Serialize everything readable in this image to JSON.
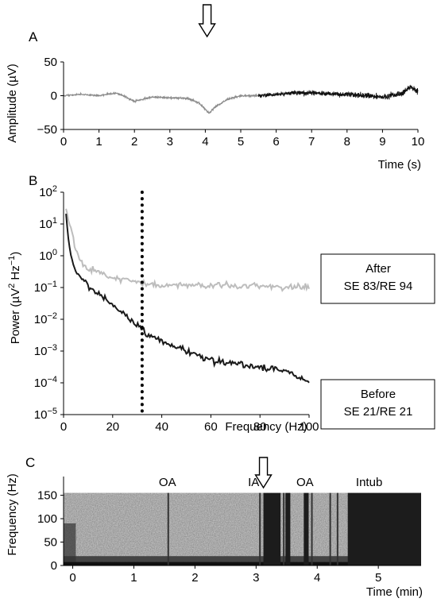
{
  "chart_data": [
    {
      "panel": "A",
      "type": "line",
      "xlabel": "Time (s)",
      "ylabel": "Amplitude (µV)",
      "xlim": [
        0,
        10
      ],
      "ylim": [
        -50,
        50
      ],
      "xticks": [
        "0",
        "1",
        "2",
        "3",
        "4",
        "5",
        "6",
        "7",
        "8",
        "9",
        "10"
      ],
      "yticks": [
        "50",
        "0",
        "−50"
      ],
      "grid": false,
      "series": [
        {
          "color": "#8c8c8c",
          "x": [
            0,
            0.5,
            1,
            1.5,
            2,
            2.5,
            3,
            3.5,
            3.8,
            4,
            4.1,
            4.3,
            4.6,
            5,
            5.5
          ],
          "y": [
            0,
            2,
            0,
            4,
            -8,
            -2,
            -3,
            -4,
            -10,
            -20,
            -26,
            -16,
            -6,
            0,
            0
          ]
        },
        {
          "color": "#111111",
          "x": [
            5.5,
            6,
            6.5,
            7,
            7.5,
            8,
            8.5,
            9,
            9.5,
            9.8,
            10
          ],
          "y": [
            0,
            2,
            4,
            4,
            3,
            2,
            0,
            -2,
            2,
            14,
            6
          ]
        }
      ],
      "annotations": [
        {
          "type": "arrow-down",
          "x": 4.05
        }
      ]
    },
    {
      "panel": "B",
      "type": "line",
      "xlabel": "Frequency (Hz)",
      "ylabel": "Power (µV² Hz⁻¹)",
      "xlim": [
        0,
        100
      ],
      "ylim": [
        1e-05,
        100
      ],
      "yscale": "log",
      "xticks": [
        "0",
        "20",
        "40",
        "60",
        "80",
        "100"
      ],
      "ytick_exponents": [
        "2",
        "1",
        "0",
        "−1",
        "−2",
        "−3",
        "−4",
        "−5"
      ],
      "grid": false,
      "vline": {
        "x": 32,
        "style": "dotted"
      },
      "series": [
        {
          "label": "After",
          "legend_text": [
            "After",
            "SE 83/RE 94"
          ],
          "color": "#bdbdbd",
          "x": [
            1,
            3,
            5,
            7,
            10,
            15,
            20,
            30,
            40,
            60,
            80,
            100
          ],
          "y": [
            30,
            8,
            1.5,
            0.6,
            0.4,
            0.3,
            0.2,
            0.15,
            0.12,
            0.12,
            0.11,
            0.1
          ]
        },
        {
          "label": "Before",
          "legend_text": [
            "Before",
            "SE 21/RE 21"
          ],
          "color": "#1a1a1a",
          "x": [
            1,
            2,
            3,
            5,
            8,
            10,
            15,
            20,
            25,
            30,
            35,
            40,
            50,
            60,
            70,
            80,
            90,
            100
          ],
          "y": [
            25,
            3,
            1,
            0.3,
            0.2,
            0.1,
            0.06,
            0.03,
            0.015,
            0.006,
            0.003,
            0.002,
            0.001,
            0.0005,
            0.0004,
            0.0003,
            0.00025,
            0.0001
          ]
        }
      ]
    },
    {
      "panel": "C",
      "type": "heatmap",
      "xlabel": "Time (min)",
      "ylabel": "Frequency (Hz)",
      "xlim": [
        -0.15,
        5.7
      ],
      "ylim": [
        0,
        190
      ],
      "xticks": [
        "0",
        "1",
        "2",
        "3",
        "4",
        "5"
      ],
      "yticks": [
        "150",
        "100",
        "50",
        "0"
      ],
      "freq_max_hz": 155,
      "dense_intervals_min": [
        [
          3.12,
          3.4
        ],
        [
          3.48,
          3.56
        ],
        [
          3.78,
          3.86
        ],
        [
          4.5,
          5.7
        ]
      ],
      "thin_lines_min": [
        1.55,
        3.05,
        3.44,
        3.9,
        4.2,
        4.32
      ],
      "annotations": [
        {
          "text": "OA",
          "x": 1.55
        },
        {
          "text": "IA",
          "x": 2.96
        },
        {
          "text": "OA",
          "x": 3.8
        },
        {
          "text": "Intub",
          "x": 4.85
        }
      ],
      "arrow_x": 3.12
    }
  ],
  "panels": {
    "a": "A",
    "b": "B",
    "c": "C"
  }
}
